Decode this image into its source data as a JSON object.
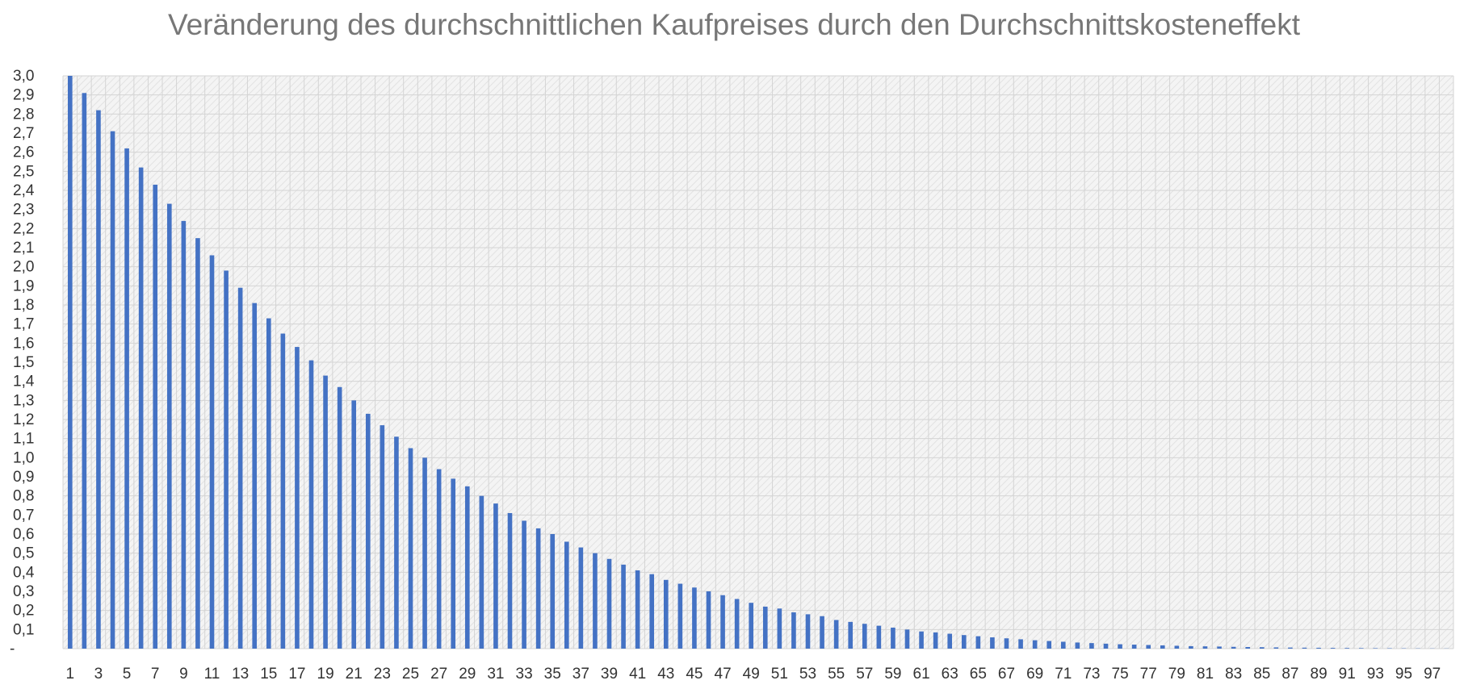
{
  "chart_data": {
    "type": "bar",
    "title": "Veränderung des durchschnittlichen Kaufpreises durch den Durchschnittskosteneffekt",
    "xlabel": "",
    "ylabel": "",
    "ylim": [
      0,
      3.0
    ],
    "y_ticks": [
      "-",
      "0,1",
      "0,2",
      "0,3",
      "0,4",
      "0,5",
      "0,6",
      "0,7",
      "0,8",
      "0,9",
      "1,0",
      "1,1",
      "1,2",
      "1,3",
      "1,4",
      "1,5",
      "1,6",
      "1,7",
      "1,8",
      "1,9",
      "2,0",
      "2,1",
      "2,2",
      "2,3",
      "2,4",
      "2,5",
      "2,6",
      "2,7",
      "2,8",
      "2,9",
      "3,0"
    ],
    "x_ticks": [
      "1",
      "3",
      "5",
      "7",
      "9",
      "11",
      "13",
      "15",
      "17",
      "19",
      "21",
      "23",
      "25",
      "27",
      "29",
      "31",
      "33",
      "35",
      "37",
      "39",
      "41",
      "43",
      "45",
      "47",
      "49",
      "51",
      "53",
      "55",
      "57",
      "59",
      "61",
      "63",
      "65",
      "67",
      "69",
      "71",
      "73",
      "75",
      "77",
      "79",
      "81",
      "83",
      "85",
      "87",
      "89",
      "91",
      "93",
      "95",
      "97"
    ],
    "categories": [
      1,
      2,
      3,
      4,
      5,
      6,
      7,
      8,
      9,
      10,
      11,
      12,
      13,
      14,
      15,
      16,
      17,
      18,
      19,
      20,
      21,
      22,
      23,
      24,
      25,
      26,
      27,
      28,
      29,
      30,
      31,
      32,
      33,
      34,
      35,
      36,
      37,
      38,
      39,
      40,
      41,
      42,
      43,
      44,
      45,
      46,
      47,
      48,
      49,
      50,
      51,
      52,
      53,
      54,
      55,
      56,
      57,
      58,
      59,
      60,
      61,
      62,
      63,
      64,
      65,
      66,
      67,
      68,
      69,
      70,
      71,
      72,
      73,
      74,
      75,
      76,
      77,
      78,
      79,
      80,
      81,
      82,
      83,
      84,
      85,
      86,
      87,
      88,
      89,
      90,
      91,
      92,
      93,
      94,
      95,
      96,
      97,
      98
    ],
    "values": [
      3.0,
      2.91,
      2.82,
      2.71,
      2.62,
      2.52,
      2.43,
      2.33,
      2.24,
      2.15,
      2.06,
      1.98,
      1.89,
      1.81,
      1.73,
      1.65,
      1.58,
      1.51,
      1.43,
      1.37,
      1.3,
      1.23,
      1.17,
      1.11,
      1.05,
      1.0,
      0.94,
      0.89,
      0.85,
      0.8,
      0.76,
      0.71,
      0.67,
      0.63,
      0.6,
      0.56,
      0.53,
      0.5,
      0.47,
      0.44,
      0.41,
      0.39,
      0.36,
      0.34,
      0.32,
      0.3,
      0.28,
      0.26,
      0.24,
      0.22,
      0.21,
      0.19,
      0.18,
      0.17,
      0.15,
      0.14,
      0.13,
      0.12,
      0.11,
      0.1,
      0.09,
      0.085,
      0.078,
      0.071,
      0.065,
      0.059,
      0.054,
      0.049,
      0.044,
      0.04,
      0.036,
      0.032,
      0.029,
      0.026,
      0.023,
      0.021,
      0.019,
      0.017,
      0.015,
      0.013,
      0.012,
      0.011,
      0.0095,
      0.0085,
      0.0075,
      0.0065,
      0.0057,
      0.005,
      0.0044,
      0.0038,
      0.0033,
      0.0028,
      0.0024,
      0.002,
      0.0016,
      0.0013,
      0.001,
      0.0008
    ],
    "grid": true,
    "legend": "none",
    "bar_color": "#4472C4",
    "grid_color": "#d4d4d4",
    "plot_background": "hatched-light-gray"
  }
}
